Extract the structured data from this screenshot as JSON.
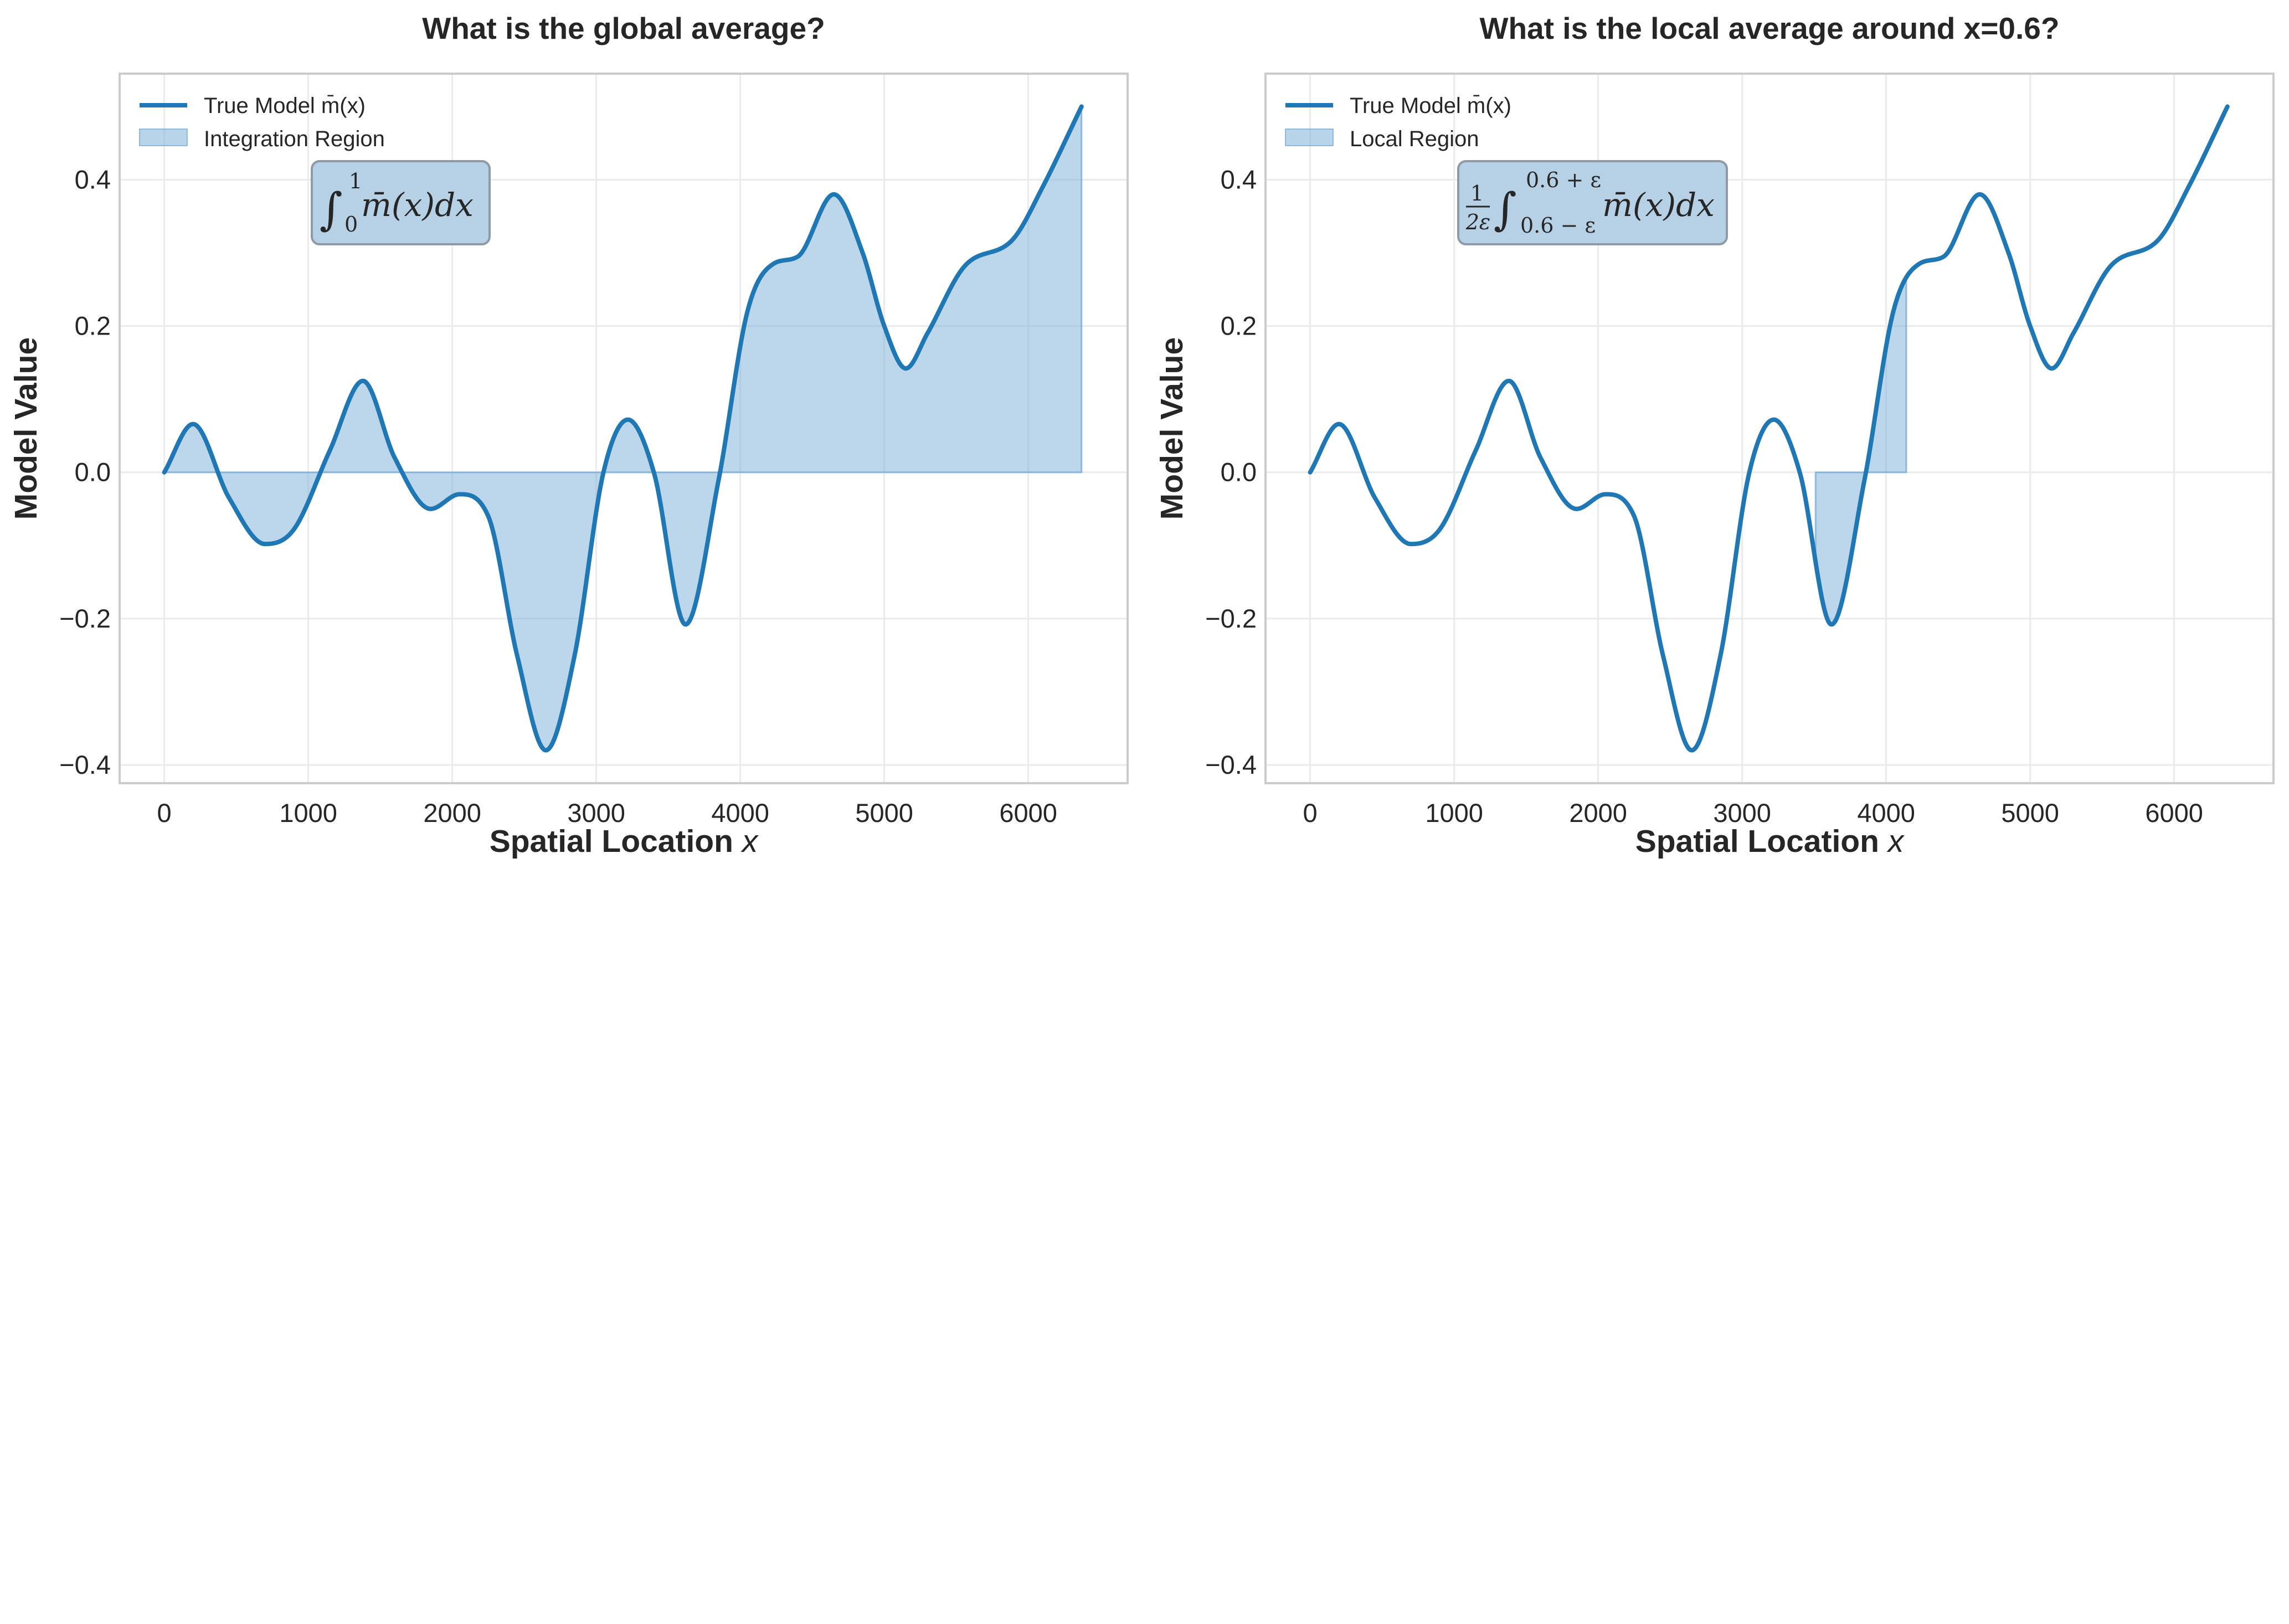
{
  "chart_data": [
    {
      "type": "line",
      "title": "What is the global average?",
      "xlabel": "Spatial Location",
      "xlabel_var": "x",
      "ylabel": "Model Value",
      "xlim": [
        -310,
        6690
      ],
      "ylim": [
        -0.425,
        0.545
      ],
      "x_ticks": [
        0,
        1000,
        2000,
        3000,
        4000,
        5000,
        6000
      ],
      "y_ticks": [
        -0.4,
        -0.2,
        0.0,
        0.2,
        0.4
      ],
      "x_tick_labels": [
        "0",
        "1000",
        "2000",
        "3000",
        "4000",
        "5000",
        "6000"
      ],
      "y_tick_labels": [
        "−0.4",
        "−0.2",
        "0.0",
        "0.2",
        "0.4"
      ],
      "grid": true,
      "legend_position": "upper-left",
      "series": [
        {
          "name": "True Model m̄(x)",
          "color": "#1f77b4",
          "x": [
            0,
            200,
            450,
            700,
            900,
            1150,
            1380,
            1600,
            1850,
            2050,
            2250,
            2450,
            2650,
            2850,
            3050,
            3220,
            3400,
            3620,
            3850,
            4050,
            4230,
            4400,
            4650,
            4850,
            5000,
            5150,
            5300,
            5550,
            5900,
            6100,
            6370
          ],
          "y": [
            0.0,
            0.066,
            -0.035,
            -0.098,
            -0.078,
            0.03,
            0.125,
            0.02,
            -0.05,
            -0.03,
            -0.06,
            -0.25,
            -0.38,
            -0.25,
            0.0,
            0.072,
            0.0,
            -0.208,
            -0.01,
            0.22,
            0.285,
            0.295,
            0.38,
            0.3,
            0.2,
            0.142,
            0.19,
            0.28,
            0.32,
            0.39,
            0.5
          ]
        }
      ],
      "fill_region": {
        "name": "Integration Region",
        "x_range": [
          0,
          6370
        ],
        "color": "#7fb2d9"
      },
      "annotation": "∫₀¹ m̄(x)dx"
    },
    {
      "type": "line",
      "title": "What is the local average around x=0.6?",
      "xlabel": "Spatial Location",
      "xlabel_var": "x",
      "ylabel": "Model Value",
      "xlim": [
        -310,
        6690
      ],
      "ylim": [
        -0.425,
        0.545
      ],
      "x_ticks": [
        0,
        1000,
        2000,
        3000,
        4000,
        5000,
        6000
      ],
      "y_ticks": [
        -0.4,
        -0.2,
        0.0,
        0.2,
        0.4
      ],
      "x_tick_labels": [
        "0",
        "1000",
        "2000",
        "3000",
        "4000",
        "5000",
        "6000"
      ],
      "y_tick_labels": [
        "−0.4",
        "−0.2",
        "0.0",
        "0.2",
        "0.4"
      ],
      "grid": true,
      "legend_position": "upper-left",
      "series": [
        {
          "name": "True Model m̄(x)",
          "color": "#1f77b4",
          "x": [
            0,
            200,
            450,
            700,
            900,
            1150,
            1380,
            1600,
            1850,
            2050,
            2250,
            2450,
            2650,
            2850,
            3050,
            3220,
            3400,
            3620,
            3850,
            4050,
            4230,
            4400,
            4650,
            4850,
            5000,
            5150,
            5300,
            5550,
            5900,
            6100,
            6370
          ],
          "y": [
            0.0,
            0.066,
            -0.035,
            -0.098,
            -0.078,
            0.03,
            0.125,
            0.02,
            -0.05,
            -0.03,
            -0.06,
            -0.25,
            -0.38,
            -0.25,
            0.0,
            0.072,
            0.0,
            -0.208,
            -0.01,
            0.22,
            0.285,
            0.295,
            0.38,
            0.3,
            0.2,
            0.142,
            0.19,
            0.28,
            0.32,
            0.39,
            0.5
          ]
        }
      ],
      "fill_region": {
        "name": "Local Region",
        "x_range": [
          3510,
          4140
        ],
        "color": "#7fb2d9"
      },
      "annotation": "1/(2ε) ∫₀.₆₋ε^0.6+ε m̄(x)dx"
    }
  ],
  "formulas": {
    "left": {
      "integral": "∫",
      "upper": "1",
      "lower": "0",
      "body": "m̄(x)dx"
    },
    "right": {
      "frac_num": "1",
      "frac_den": "2ε",
      "integral": "∫",
      "upper": "0.6 + ε",
      "lower": "0.6 − ε",
      "body": "m̄(x)dx"
    }
  },
  "colors": {
    "line": "#1f77b4",
    "fill": "#7fb2d9",
    "grid": "#ebebeb",
    "frame": "#cccccc",
    "box_fill": "#b6d1e6",
    "box_edge": "#8f9aa5"
  }
}
